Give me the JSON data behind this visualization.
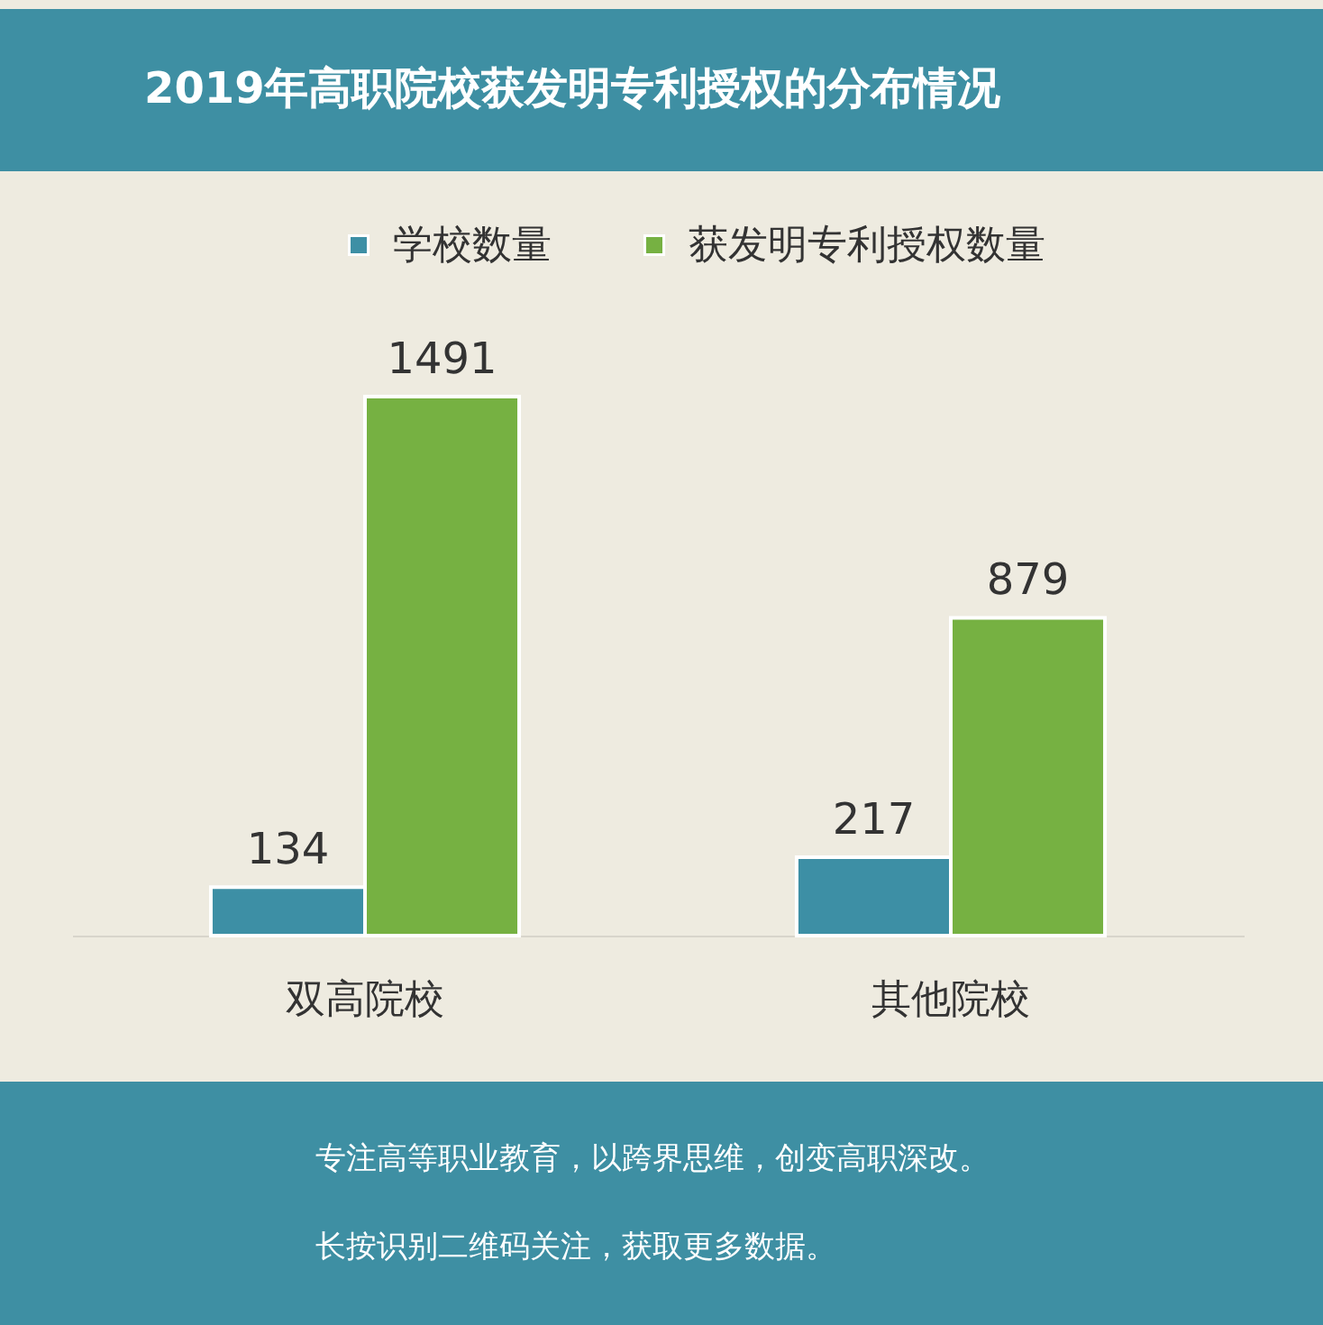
{
  "chart_data": {
    "type": "bar",
    "title": "2019年高职院校获发明专利授权的分布情况",
    "categories": [
      "双高院校",
      "其他院校"
    ],
    "series": [
      {
        "name": "学校数量",
        "color": "#3d8fa5",
        "values": [
          134,
          217
        ]
      },
      {
        "name": "获发明专利授权数量",
        "color": "#76b142",
        "values": [
          1491,
          879
        ]
      }
    ],
    "data_labels": true,
    "legend": "top",
    "tick_labels": "x",
    "annotations": [
      "专注高等职业教育，以跨界思维，创变高职深改。",
      "长按识别二维码关注，获取更多数据。"
    ]
  }
}
